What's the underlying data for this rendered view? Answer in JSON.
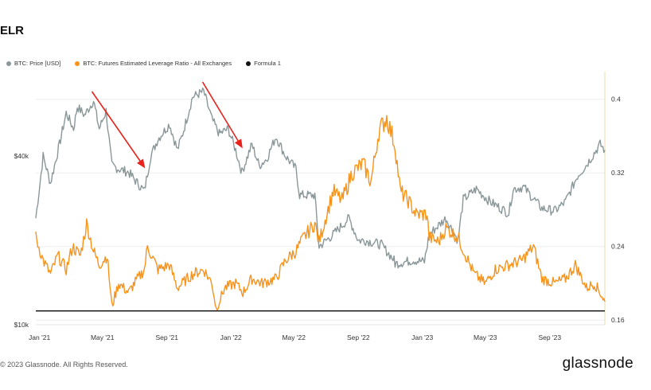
{
  "title": "ELR",
  "legend": {
    "price": {
      "label": "BTC: Price [USD]",
      "color": "#8a9799"
    },
    "elr": {
      "label": "BTC: Futures Estimated Leverage Ratio - All Exchanges",
      "color": "#f7931a"
    },
    "formula": {
      "label": "Formula 1",
      "color": "#111111"
    }
  },
  "footer": {
    "copyright": "© 2023 Glassnode. All Rights Reserved.",
    "brand": "glassnode"
  },
  "chart_data": {
    "type": "line",
    "x_tick_labels": [
      "Jan '21",
      "May '21",
      "Sep '21",
      "Jan '22",
      "May '22",
      "Sep '22",
      "Jan '23",
      "May '23",
      "Sep '23"
    ],
    "left_axis": {
      "scale": "log",
      "ticks": [
        "$10k",
        "$40k"
      ],
      "ylim": [
        10000,
        80000
      ]
    },
    "right_axis": {
      "ticks": [
        "0.16",
        "0.24",
        "0.32",
        "0.4"
      ],
      "ylim": [
        0.155,
        0.43
      ]
    },
    "grid": "horizontal",
    "annotations": [
      {
        "type": "arrow",
        "color": "#e8221b",
        "from": "2021-04-11",
        "to": "2021-07-20"
      },
      {
        "type": "arrow",
        "color": "#e8221b",
        "from": "2021-11-08",
        "to": "2022-01-22"
      }
    ],
    "series": [
      {
        "name": "BTC: Price [USD]",
        "axis": "left",
        "color": "#8a9799",
        "points": [
          [
            "2020-12-25",
            24000
          ],
          [
            "2021-01-08",
            40000
          ],
          [
            "2021-01-22",
            32000
          ],
          [
            "2021-02-08",
            44000
          ],
          [
            "2021-02-21",
            57000
          ],
          [
            "2021-03-07",
            50000
          ],
          [
            "2021-03-14",
            60000
          ],
          [
            "2021-03-28",
            56000
          ],
          [
            "2021-04-14",
            63000
          ],
          [
            "2021-04-25",
            50000
          ],
          [
            "2021-05-08",
            58000
          ],
          [
            "2021-05-19",
            37000
          ],
          [
            "2021-06-01",
            36000
          ],
          [
            "2021-06-20",
            35000
          ],
          [
            "2021-07-01",
            33000
          ],
          [
            "2021-07-20",
            30000
          ],
          [
            "2021-08-01",
            40000
          ],
          [
            "2021-08-15",
            46000
          ],
          [
            "2021-09-06",
            52000
          ],
          [
            "2021-09-21",
            42000
          ],
          [
            "2021-10-01",
            48000
          ],
          [
            "2021-10-20",
            65000
          ],
          [
            "2021-11-10",
            68000
          ],
          [
            "2021-11-26",
            54000
          ],
          [
            "2021-12-10",
            48000
          ],
          [
            "2021-12-27",
            50000
          ],
          [
            "2022-01-10",
            42000
          ],
          [
            "2022-01-22",
            35000
          ],
          [
            "2022-02-10",
            44000
          ],
          [
            "2022-02-24",
            37000
          ],
          [
            "2022-03-10",
            39000
          ],
          [
            "2022-03-28",
            47000
          ],
          [
            "2022-04-15",
            40000
          ],
          [
            "2022-05-05",
            36000
          ],
          [
            "2022-05-12",
            29000
          ],
          [
            "2022-06-10",
            29000
          ],
          [
            "2022-06-18",
            19000
          ],
          [
            "2022-07-15",
            21000
          ],
          [
            "2022-08-14",
            24000
          ],
          [
            "2022-09-01",
            20000
          ],
          [
            "2022-09-15",
            20000
          ],
          [
            "2022-10-15",
            19300
          ],
          [
            "2022-11-08",
            17000
          ],
          [
            "2022-11-10",
            16500
          ],
          [
            "2022-12-15",
            17000
          ],
          [
            "2023-01-05",
            16800
          ],
          [
            "2023-01-14",
            21000
          ],
          [
            "2023-02-15",
            24000
          ],
          [
            "2023-03-10",
            20000
          ],
          [
            "2023-03-20",
            28000
          ],
          [
            "2023-04-14",
            30500
          ],
          [
            "2023-05-10",
            27500
          ],
          [
            "2023-06-15",
            25000
          ],
          [
            "2023-06-23",
            30500
          ],
          [
            "2023-07-13",
            31000
          ],
          [
            "2023-08-17",
            26000
          ],
          [
            "2023-09-11",
            25500
          ],
          [
            "2023-10-01",
            27500
          ],
          [
            "2023-10-24",
            34000
          ],
          [
            "2023-11-09",
            37000
          ],
          [
            "2023-12-06",
            44000
          ],
          [
            "2023-12-15",
            42000
          ]
        ]
      },
      {
        "name": "BTC: Futures Estimated Leverage Ratio - All Exchanges",
        "axis": "right",
        "color": "#f7931a",
        "points": [
          [
            "2020-12-25",
            0.25
          ],
          [
            "2021-01-08",
            0.225
          ],
          [
            "2021-01-22",
            0.21
          ],
          [
            "2021-02-05",
            0.23
          ],
          [
            "2021-02-21",
            0.215
          ],
          [
            "2021-03-05",
            0.24
          ],
          [
            "2021-03-20",
            0.23
          ],
          [
            "2021-04-01",
            0.265
          ],
          [
            "2021-04-14",
            0.235
          ],
          [
            "2021-04-25",
            0.22
          ],
          [
            "2021-05-10",
            0.23
          ],
          [
            "2021-05-19",
            0.175
          ],
          [
            "2021-06-01",
            0.2
          ],
          [
            "2021-06-20",
            0.19
          ],
          [
            "2021-07-01",
            0.2
          ],
          [
            "2021-07-20",
            0.215
          ],
          [
            "2021-07-26",
            0.24
          ],
          [
            "2021-08-15",
            0.215
          ],
          [
            "2021-09-06",
            0.22
          ],
          [
            "2021-09-21",
            0.195
          ],
          [
            "2021-10-10",
            0.205
          ],
          [
            "2021-10-20",
            0.21
          ],
          [
            "2021-11-10",
            0.215
          ],
          [
            "2021-11-26",
            0.2
          ],
          [
            "2021-12-04",
            0.172
          ],
          [
            "2021-12-20",
            0.195
          ],
          [
            "2022-01-10",
            0.2
          ],
          [
            "2022-01-24",
            0.19
          ],
          [
            "2022-02-10",
            0.205
          ],
          [
            "2022-03-01",
            0.2
          ],
          [
            "2022-03-28",
            0.205
          ],
          [
            "2022-04-15",
            0.225
          ],
          [
            "2022-05-05",
            0.235
          ],
          [
            "2022-05-20",
            0.25
          ],
          [
            "2022-06-10",
            0.265
          ],
          [
            "2022-06-18",
            0.245
          ],
          [
            "2022-07-15",
            0.3
          ],
          [
            "2022-08-01",
            0.29
          ],
          [
            "2022-08-20",
            0.32
          ],
          [
            "2022-09-10",
            0.33
          ],
          [
            "2022-09-25",
            0.31
          ],
          [
            "2022-10-10",
            0.365
          ],
          [
            "2022-10-25",
            0.38
          ],
          [
            "2022-11-10",
            0.35
          ],
          [
            "2022-11-20",
            0.3
          ],
          [
            "2022-12-05",
            0.29
          ],
          [
            "2022-12-20",
            0.275
          ],
          [
            "2023-01-10",
            0.275
          ],
          [
            "2023-01-14",
            0.25
          ],
          [
            "2023-02-01",
            0.245
          ],
          [
            "2023-02-15",
            0.26
          ],
          [
            "2023-03-10",
            0.25
          ],
          [
            "2023-03-25",
            0.23
          ],
          [
            "2023-04-10",
            0.21
          ],
          [
            "2023-05-01",
            0.2
          ],
          [
            "2023-05-20",
            0.215
          ],
          [
            "2023-06-15",
            0.22
          ],
          [
            "2023-07-10",
            0.225
          ],
          [
            "2023-08-01",
            0.24
          ],
          [
            "2023-08-17",
            0.205
          ],
          [
            "2023-09-11",
            0.2
          ],
          [
            "2023-10-01",
            0.205
          ],
          [
            "2023-10-20",
            0.22
          ],
          [
            "2023-11-10",
            0.195
          ],
          [
            "2023-11-25",
            0.2
          ],
          [
            "2023-12-08",
            0.188
          ],
          [
            "2023-12-15",
            0.18
          ]
        ]
      },
      {
        "name": "Formula 1",
        "axis": "right",
        "color": "#111111",
        "points": [
          [
            "2020-12-25",
            0.17
          ],
          [
            "2023-12-15",
            0.17
          ]
        ]
      }
    ]
  }
}
